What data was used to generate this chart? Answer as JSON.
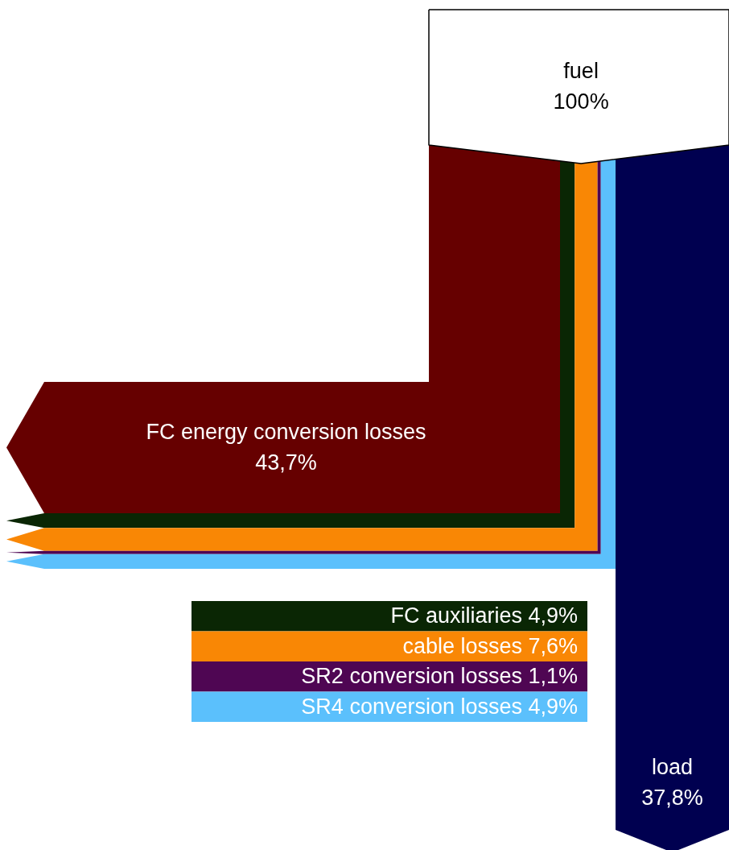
{
  "chart_data": {
    "type": "other",
    "categories": [
      "fuel",
      "FC energy conversion losses",
      "FC auxiliaries",
      "cable losses",
      "SR2 conversion losses",
      "SR4 conversion losses",
      "load"
    ],
    "values": [
      100,
      43.7,
      4.9,
      7.6,
      1.1,
      4.9,
      37.8
    ],
    "value_labels": [
      "100%",
      "43,7%",
      "4,9%",
      "7,6%",
      "1,1%",
      "4,9%",
      "37,8%"
    ],
    "colors": [
      "#ffffff",
      "#660000",
      "#0a2604",
      "#f98705",
      "#4f0653",
      "#5bc0fc",
      "#000050"
    ]
  }
}
